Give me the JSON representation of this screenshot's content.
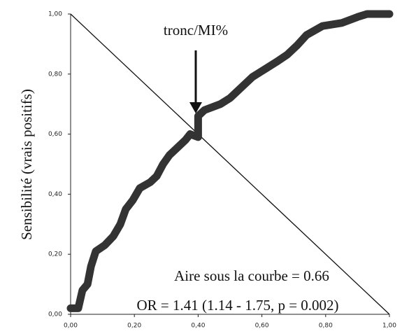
{
  "chart_data": {
    "type": "line",
    "y_label": "Sensibilité (vrais positifs)",
    "annotations": [
      "tronc/MI%",
      "Aire sous la courbe = 0.66",
      "OR = 1.41 (1.14 - 1.75, p = 0.002)"
    ],
    "xlim": [
      0,
      1
    ],
    "ylim": [
      0,
      1
    ],
    "xticks": [
      {
        "value": 0,
        "label": "0,00"
      },
      {
        "value": 0.2,
        "label": "0,20"
      },
      {
        "value": 0.4,
        "label": "0,40"
      },
      {
        "value": 0.6,
        "label": "0,60"
      },
      {
        "value": 0.8,
        "label": "0,80"
      },
      {
        "value": 1,
        "label": "1,00"
      }
    ],
    "yticks": [
      {
        "value": 0,
        "label": "0,00"
      },
      {
        "value": 0.2,
        "label": "0,20"
      },
      {
        "value": 0.4,
        "label": "0,40"
      },
      {
        "value": 0.6,
        "label": "0,60"
      },
      {
        "value": 0.8,
        "label": "0,80"
      },
      {
        "value": 1,
        "label": "1,00"
      }
    ],
    "series": [
      {
        "color": "#333333",
        "x": [
          0,
          0.024,
          0.037,
          0.053,
          0.064,
          0.079,
          0.107,
          0.134,
          0.156,
          0.173,
          0.195,
          0.217,
          0.25,
          0.27,
          0.29,
          0.31,
          0.34,
          0.36,
          0.375,
          0.4,
          0.4,
          0.42,
          0.47,
          0.5,
          0.535,
          0.57,
          0.6,
          0.645,
          0.68,
          0.71,
          0.74,
          0.79,
          0.85,
          0.9,
          0.93,
          1.0
        ],
        "values": [
          0.02,
          0.02,
          0.08,
          0.1,
          0.16,
          0.21,
          0.23,
          0.26,
          0.3,
          0.35,
          0.38,
          0.42,
          0.44,
          0.46,
          0.5,
          0.53,
          0.56,
          0.58,
          0.6,
          0.59,
          0.66,
          0.68,
          0.7,
          0.72,
          0.755,
          0.79,
          0.81,
          0.84,
          0.865,
          0.895,
          0.93,
          0.96,
          0.97,
          0.99,
          1.0,
          1.0
        ]
      }
    ]
  }
}
